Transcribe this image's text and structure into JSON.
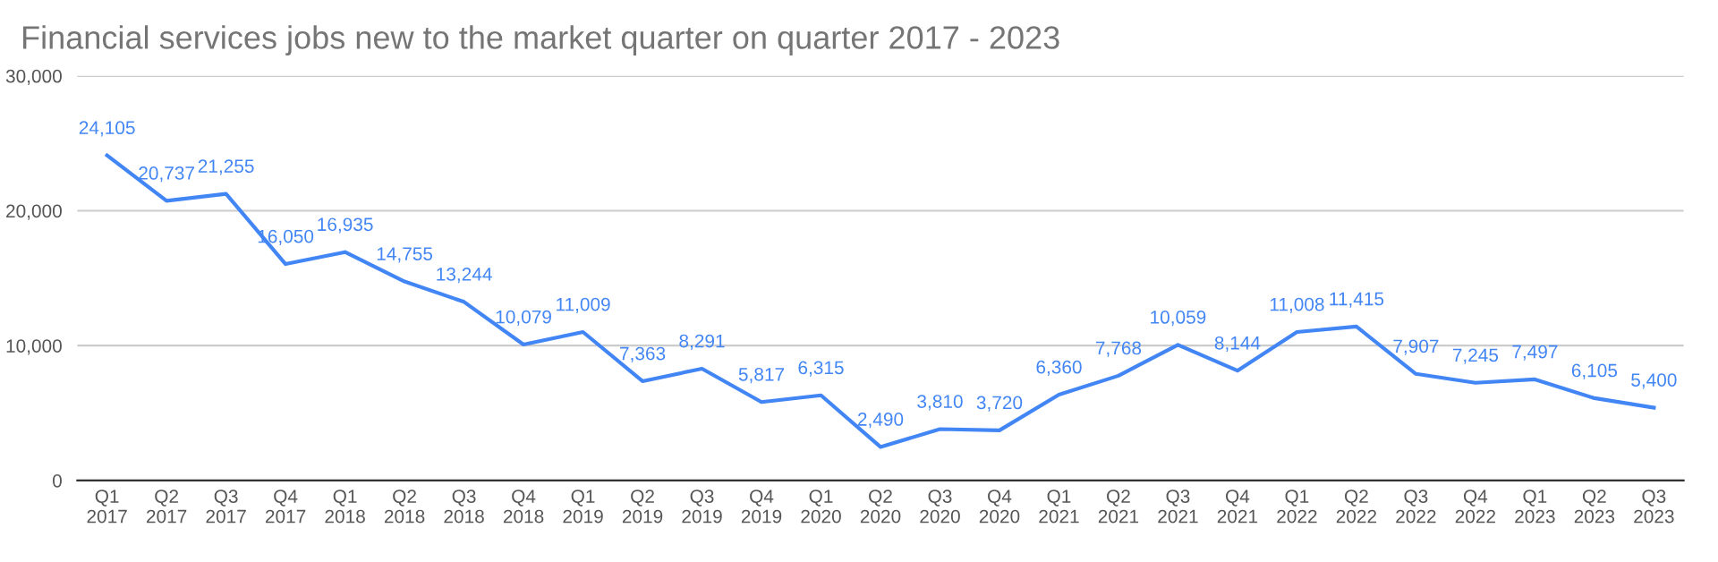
{
  "chart_data": {
    "type": "line",
    "title": "Financial services jobs new to the market quarter on quarter 2017 - 2023",
    "categories": [
      "Q1\n2017",
      "Q2\n2017",
      "Q3\n2017",
      "Q4\n2017",
      "Q1\n2018",
      "Q2\n2018",
      "Q3\n2018",
      "Q4\n2018",
      "Q1\n2019",
      "Q2\n2019",
      "Q3\n2019",
      "Q4\n2019",
      "Q1\n2020",
      "Q2\n2020",
      "Q3\n2020",
      "Q4\n2020",
      "Q1\n2021",
      "Q2\n2021",
      "Q3\n2021",
      "Q4\n2021",
      "Q1\n2022",
      "Q2\n2022",
      "Q3\n2022",
      "Q4\n2022",
      "Q1\n2023",
      "Q2\n2023",
      "Q3\n2023"
    ],
    "values": [
      24105,
      20737,
      21255,
      16050,
      16935,
      14755,
      13244,
      10079,
      11009,
      7363,
      8291,
      5817,
      6315,
      2490,
      3810,
      3720,
      6360,
      7768,
      10059,
      8144,
      11008,
      11415,
      7907,
      7245,
      7497,
      6105,
      5400
    ],
    "value_labels": [
      "24,105",
      "20,737",
      "21,255",
      "16,050",
      "16,935",
      "14,755",
      "13,244",
      "10,079",
      "11,009",
      "7,363",
      "8,291",
      "5,817",
      "6,315",
      "2,490",
      "3,810",
      "3,720",
      "6,360",
      "7,768",
      "10,059",
      "8,144",
      "11,008",
      "11,415",
      "7,907",
      "7,245",
      "7,497",
      "6,105",
      "5,400"
    ],
    "color": "#4285f4",
    "ylim": [
      0,
      30000
    ],
    "yticks": [
      {
        "value": 0,
        "label": "0"
      },
      {
        "value": 10000,
        "label": "10,000"
      },
      {
        "value": 20000,
        "label": "20,000"
      },
      {
        "value": 30000,
        "label": "30,000"
      }
    ],
    "grid": "y",
    "legend": false,
    "marker": "none",
    "line_style": "solid"
  }
}
